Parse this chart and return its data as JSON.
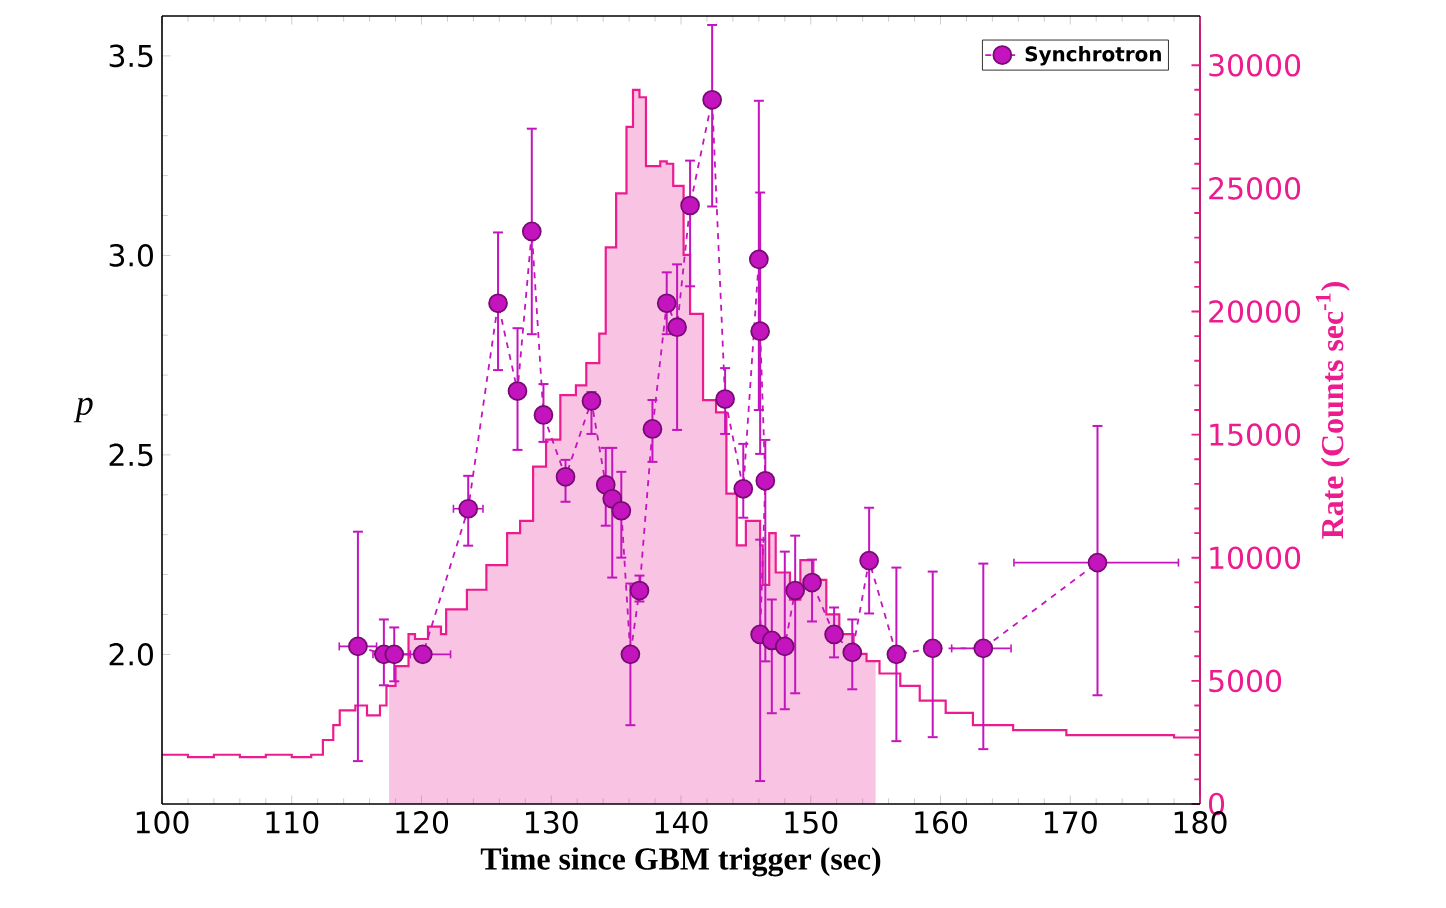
{
  "chart_data": {
    "type": "line",
    "xlabel": "Time since GBM trigger (sec)",
    "ylabel": "p",
    "y2label": "Rate (Counts sec$^{-1}$)",
    "xlim": [
      100,
      180
    ],
    "ylim": [
      1.625,
      3.6
    ],
    "y2lim": [
      0,
      32000
    ],
    "xticks": [
      100,
      110,
      120,
      130,
      140,
      150,
      160,
      170,
      180
    ],
    "yticks": [
      {
        "value": 2,
        "label": "2.0"
      },
      {
        "value": 2.5,
        "label": "2.5"
      },
      {
        "value": 3,
        "label": "3.0"
      },
      {
        "value": 3.5,
        "label": "3.5"
      }
    ],
    "y2ticks": [
      0,
      5000,
      10000,
      15000,
      20000,
      25000,
      30000
    ],
    "legend": "top right",
    "series": [
      {
        "type": "area",
        "axis": "y2",
        "color": "#f9c3e3",
        "x": [
          117.5,
          118,
          119,
          119.5,
          120.5,
          121.5,
          121.9,
          123.5,
          125.0,
          126.6,
          127.6,
          128.6,
          129.6,
          130.7,
          131.9,
          132.7,
          133.7,
          134.2,
          135.0,
          135.8,
          136.3,
          136.8,
          137.3,
          138.4,
          138.9,
          139.4,
          140.2,
          140.7,
          141.7,
          142.7,
          143.5,
          144.3,
          145.0,
          146.1,
          146.3,
          146.8,
          147.3,
          148.4,
          149.2,
          150.2,
          151.2,
          152.2,
          153.3,
          154.3,
          155
        ],
        "values": [
          4800,
          5600,
          6900,
          6700,
          7200,
          6900,
          7900,
          8700,
          9700,
          11000,
          11500,
          13700,
          14800,
          16600,
          17000,
          17900,
          19100,
          22600,
          24800,
          27500,
          29000,
          28700,
          25900,
          26100,
          26000,
          25100,
          22300,
          19900,
          16400,
          15900,
          12600,
          10500,
          11500,
          10500,
          8900,
          11000,
          9400,
          8300,
          9900,
          9100,
          7700,
          6900,
          6100,
          5800,
          5800
        ]
      },
      {
        "type": "step",
        "axis": "y2",
        "color": "#ec1c8f",
        "x": [
          100,
          102,
          104,
          106,
          108,
          110,
          111.5,
          112.4,
          113.2,
          113.7,
          114.9,
          115.8,
          116.8,
          117.3,
          118,
          119,
          119.5,
          120.5,
          121.5,
          121.9,
          123.5,
          125.0,
          126.6,
          127.6,
          128.6,
          129.6,
          130.7,
          131.9,
          132.7,
          133.7,
          134.2,
          135.0,
          135.8,
          136.3,
          136.8,
          137.3,
          138.4,
          138.9,
          139.4,
          140.2,
          140.7,
          141.7,
          142.7,
          143.5,
          144.3,
          145.0,
          146.1,
          146.3,
          146.8,
          147.3,
          148.4,
          149.2,
          150.2,
          151.2,
          152.2,
          153.3,
          154.3,
          155.3,
          156.9,
          158.4,
          160.4,
          162.5,
          165.6,
          169.7,
          174,
          178,
          180
        ],
        "values": [
          2000,
          1900,
          2000,
          1900,
          2000,
          1900,
          2000,
          2600,
          3200,
          3800,
          4000,
          3600,
          4000,
          4800,
          5600,
          6900,
          6700,
          7200,
          6900,
          7900,
          8700,
          9700,
          11000,
          11500,
          13700,
          14800,
          16600,
          17000,
          17900,
          19100,
          22600,
          24800,
          27500,
          29000,
          28700,
          25900,
          26100,
          26000,
          25100,
          22300,
          19900,
          16400,
          15900,
          12600,
          10500,
          11500,
          10500,
          8900,
          11000,
          9400,
          8300,
          9900,
          9100,
          7700,
          6900,
          6100,
          5800,
          5300,
          4800,
          4200,
          3700,
          3200,
          3000,
          2800,
          2800,
          2700,
          2600
        ]
      },
      {
        "name": "Synchrotron",
        "color": "#c414be",
        "marker": "circle",
        "line_style": "dashed",
        "x": [
          115.1,
          117.1,
          117.9,
          120.1,
          123.6,
          125.9,
          127.4,
          128.5,
          129.4,
          131.1,
          133.1,
          134.2,
          134.7,
          135.4,
          136.1,
          136.8,
          137.8,
          138.9,
          139.7,
          140.7,
          142.4,
          143.4,
          144.8,
          146.0,
          146.1,
          146.5,
          146.1,
          147.0,
          148.0,
          148.8,
          150.1,
          151.8,
          153.2,
          154.5,
          156.6,
          159.4,
          163.3,
          172.1
        ],
        "values": [
          2.02,
          2.0,
          2.0,
          2.0,
          2.365,
          2.88,
          2.66,
          3.06,
          2.6,
          2.445,
          2.635,
          2.425,
          2.39,
          2.36,
          2.0,
          2.16,
          2.565,
          2.88,
          2.82,
          3.125,
          3.39,
          2.64,
          2.415,
          2.99,
          2.81,
          2.435,
          2.05,
          2.035,
          2.02,
          2.16,
          2.18,
          2.05,
          2.005,
          2.235,
          2.0,
          2.015,
          2.015,
          2.23
        ],
        "errors": [
          [
            1.73,
            2.31
          ],
          [
            1.92,
            2.09
          ],
          [
            1.93,
            2.07
          ],
          null,
          [
            2.27,
            2.45
          ],
          [
            2.71,
            3.06
          ],
          [
            2.51,
            2.82
          ],
          [
            2.8,
            3.32
          ],
          [
            2.53,
            2.68
          ],
          [
            2.38,
            2.49
          ],
          [
            2.55,
            2.66
          ],
          [
            2.32,
            2.52
          ],
          [
            2.19,
            2.52
          ],
          [
            2.24,
            2.46
          ],
          [
            1.82,
            2.18
          ],
          [
            2.13,
            2.2
          ],
          [
            2.48,
            2.64
          ],
          [
            2.8,
            2.96
          ],
          [
            2.56,
            2.98
          ],
          [
            2.92,
            3.24
          ],
          [
            3.12,
            3.58
          ],
          [
            2.55,
            2.72
          ],
          [
            2.34,
            2.53
          ],
          [
            2.61,
            3.39
          ],
          [
            2.5,
            3.16
          ],
          [
            1.98,
            2.54
          ],
          [
            1.68,
            2.29
          ],
          [
            1.85,
            2.14
          ],
          [
            1.86,
            2.26
          ],
          [
            1.9,
            2.3
          ],
          [
            2.08,
            2.24
          ],
          [
            1.99,
            2.12
          ],
          [
            1.91,
            2.09
          ],
          [
            2.1,
            2.37
          ],
          [
            1.78,
            2.22
          ],
          [
            1.79,
            2.21
          ],
          [
            1.76,
            2.23
          ],
          [
            1.895,
            2.575
          ]
        ],
        "xerrors": [
          [
            113.6,
            116.6
          ],
          null,
          [
            116.6,
            119.2
          ],
          [
            116.2,
            122.3
          ],
          [
            122.4,
            124.8
          ],
          null,
          null,
          null,
          null,
          null,
          null,
          null,
          null,
          null,
          null,
          null,
          null,
          null,
          null,
          null,
          null,
          null,
          null,
          null,
          null,
          null,
          null,
          null,
          null,
          null,
          null,
          null,
          null,
          null,
          null,
          null,
          [
            160.8,
            165.5
          ],
          [
            165.6,
            178.4
          ]
        ]
      }
    ]
  }
}
